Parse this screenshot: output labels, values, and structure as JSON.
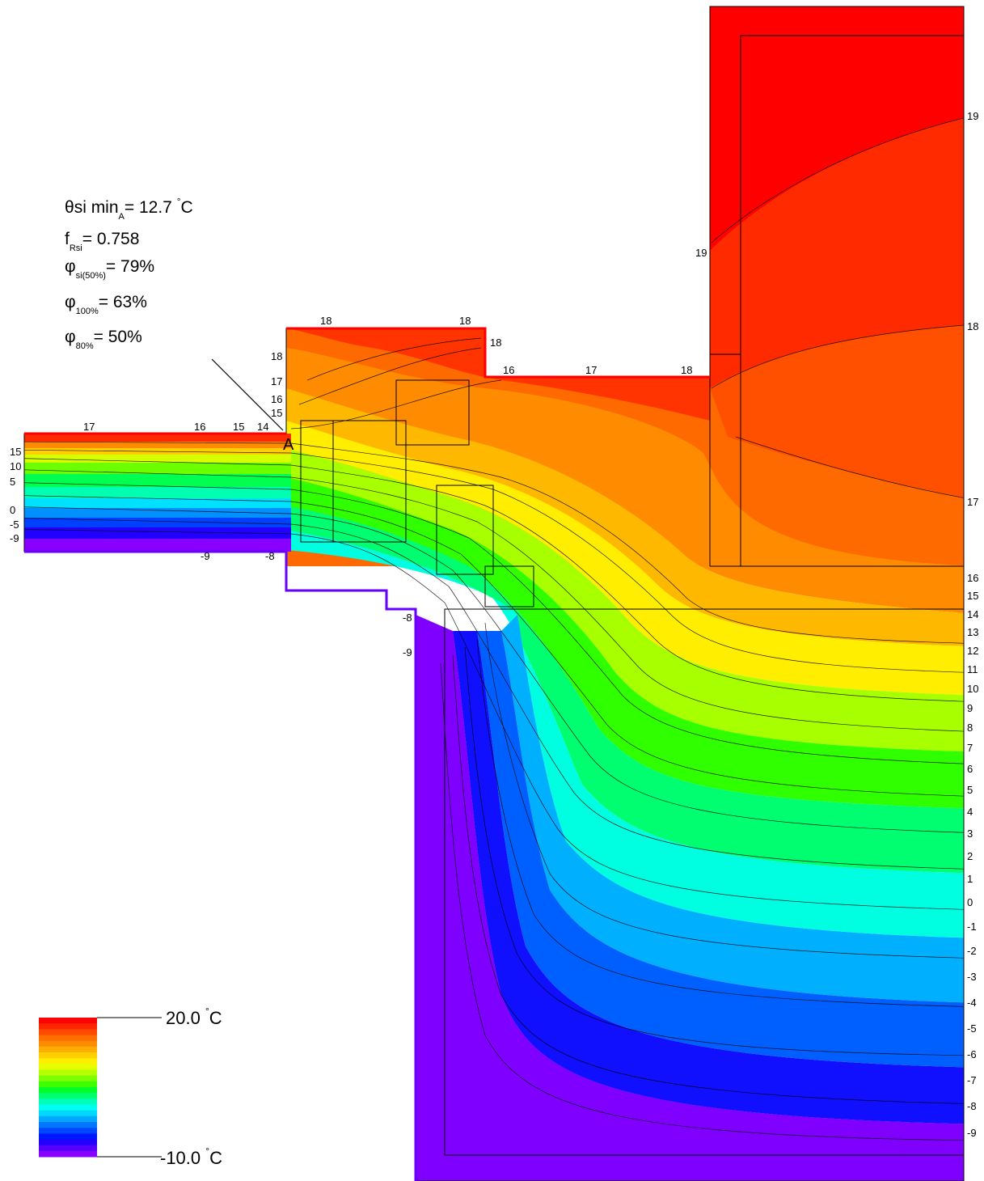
{
  "results": {
    "theta_symbol": "θ",
    "theta_main": "si min",
    "theta_sub": "A",
    "theta_value": "= 12.7",
    "theta_deg": "°",
    "theta_unit": "C",
    "f_main": "f",
    "f_sub": "Rsi",
    "f_value": "= 0.758",
    "phi_symbol": "φ",
    "phi1_sub": "si(50%)",
    "phi1_value": "= 79%",
    "phi2_sub": "100%",
    "phi2_value": "= 63%",
    "phi3_sub": "80%",
    "phi3_value": "= 50%"
  },
  "point_label": "A",
  "legend": {
    "max_value": "20.0",
    "min_value": "-10.0",
    "deg": "°",
    "unit": "C",
    "colors": [
      "#ff0000",
      "#ff2600",
      "#ff4a00",
      "#ff6e00",
      "#ff8c00",
      "#ffad00",
      "#ffcf00",
      "#ffee00",
      "#e6ff00",
      "#b4ff00",
      "#7cff00",
      "#3cff00",
      "#00ff2a",
      "#00ff70",
      "#00ffb8",
      "#00fff0",
      "#00d8ff",
      "#00a8ff",
      "#0078ff",
      "#0048ff",
      "#0018ff",
      "#2200ff",
      "#5500ff",
      "#8800ff"
    ]
  },
  "contour_labels_right": [
    "19",
    "18",
    "17",
    "16",
    "15",
    "14",
    "13",
    "12",
    "11",
    "10",
    "9",
    "8",
    "7",
    "6",
    "5",
    "4",
    "3",
    "2",
    "1",
    "0",
    "-1",
    "-2",
    "-3",
    "-4",
    "-5",
    "-6",
    "-7",
    "-8",
    "-9"
  ],
  "contour_labels_left": [
    "15",
    "10",
    "5",
    "0",
    "-5",
    "-9"
  ],
  "contour_labels_top_slab": [
    "17",
    "16",
    "15",
    "14"
  ],
  "contour_labels_frame": [
    "18",
    "18",
    "18",
    "18",
    "17",
    "16",
    "15",
    "16",
    "17",
    "18",
    "19",
    "-9",
    "-8",
    "-8",
    "-9"
  ]
}
